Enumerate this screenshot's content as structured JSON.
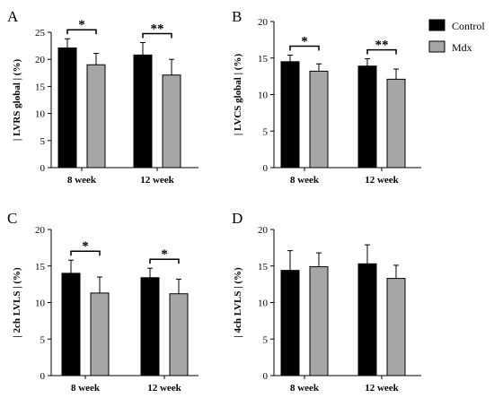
{
  "colors": {
    "control": "#000000",
    "mdx": "#a6a6a6",
    "axis": "#000000"
  },
  "legend": [
    {
      "name": "Control",
      "color": "#000000"
    },
    {
      "name": "Mdx",
      "color": "#a6a6a6"
    }
  ],
  "chart_data": [
    {
      "type": "bar",
      "panel": "A",
      "ylabel": "| LVRS global | (%)",
      "ylim": [
        0,
        25
      ],
      "yticks": [
        0,
        5,
        10,
        15,
        20,
        25
      ],
      "categories": [
        "8 week",
        "12 week"
      ],
      "series": [
        {
          "name": "Control",
          "values": [
            22.1,
            20.8
          ],
          "errors": [
            1.7,
            2.3
          ]
        },
        {
          "name": "Mdx",
          "values": [
            19.0,
            17.1
          ],
          "errors": [
            2.1,
            2.9
          ]
        }
      ],
      "significance": [
        "*",
        "**"
      ],
      "legend": "right"
    },
    {
      "type": "bar",
      "panel": "B",
      "ylabel": "| LVCS global | (%)",
      "ylim": [
        0,
        20
      ],
      "yticks": [
        0,
        5,
        10,
        15,
        20
      ],
      "categories": [
        "8 week",
        "12 week"
      ],
      "series": [
        {
          "name": "Control",
          "values": [
            14.5,
            13.9
          ],
          "errors": [
            0.9,
            1.0
          ]
        },
        {
          "name": "Mdx",
          "values": [
            13.2,
            12.1
          ],
          "errors": [
            1.0,
            1.4
          ]
        }
      ],
      "significance": [
        "*",
        "**"
      ],
      "legend": "top-right"
    },
    {
      "type": "bar",
      "panel": "C",
      "ylabel": "| 2ch LVLS | (%)",
      "ylim": [
        0,
        20
      ],
      "yticks": [
        0,
        5,
        10,
        15,
        20
      ],
      "categories": [
        "8 week",
        "12 week"
      ],
      "series": [
        {
          "name": "Control",
          "values": [
            14.0,
            13.4
          ],
          "errors": [
            1.8,
            1.3
          ]
        },
        {
          "name": "Mdx",
          "values": [
            11.3,
            11.2
          ],
          "errors": [
            2.2,
            2.0
          ]
        }
      ],
      "significance": [
        "*",
        "*"
      ]
    },
    {
      "type": "bar",
      "panel": "D",
      "ylabel": "| 4ch LVLS | (%)",
      "ylim": [
        0,
        20
      ],
      "yticks": [
        0,
        5,
        10,
        15,
        20
      ],
      "categories": [
        "8 week",
        "12 week"
      ],
      "series": [
        {
          "name": "Control",
          "values": [
            14.4,
            15.3
          ],
          "errors": [
            2.7,
            2.6
          ]
        },
        {
          "name": "Mdx",
          "values": [
            14.9,
            13.3
          ],
          "errors": [
            1.9,
            1.8
          ]
        }
      ],
      "significance": []
    }
  ]
}
